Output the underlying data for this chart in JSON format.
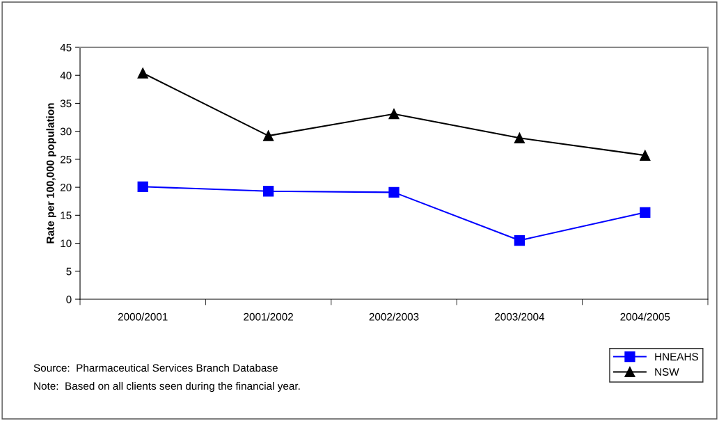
{
  "chart_data": {
    "type": "line",
    "ylabel": "Rate per 100,000 population",
    "categories": [
      "2000/2001",
      "2001/2002",
      "2002/2003",
      "2003/2004",
      "2004/2005"
    ],
    "series": [
      {
        "name": "HNEAHS",
        "color": "#0000ff",
        "marker": "square",
        "values": [
          20.1,
          19.3,
          19.1,
          10.5,
          15.5
        ]
      },
      {
        "name": "NSW",
        "color": "#000000",
        "marker": "triangle",
        "values": [
          40.4,
          29.2,
          33.1,
          28.8,
          25.7
        ]
      }
    ],
    "ylim": [
      0,
      45
    ],
    "yticks": [
      0,
      5,
      10,
      15,
      20,
      25,
      30,
      35,
      40,
      45
    ],
    "grid": false,
    "legend": "bottom right",
    "line_style": "solid",
    "annotations": [
      "Source:  Pharmaceutical Services Branch Database",
      "Note:  Based on all clients seen during the financial year."
    ]
  }
}
